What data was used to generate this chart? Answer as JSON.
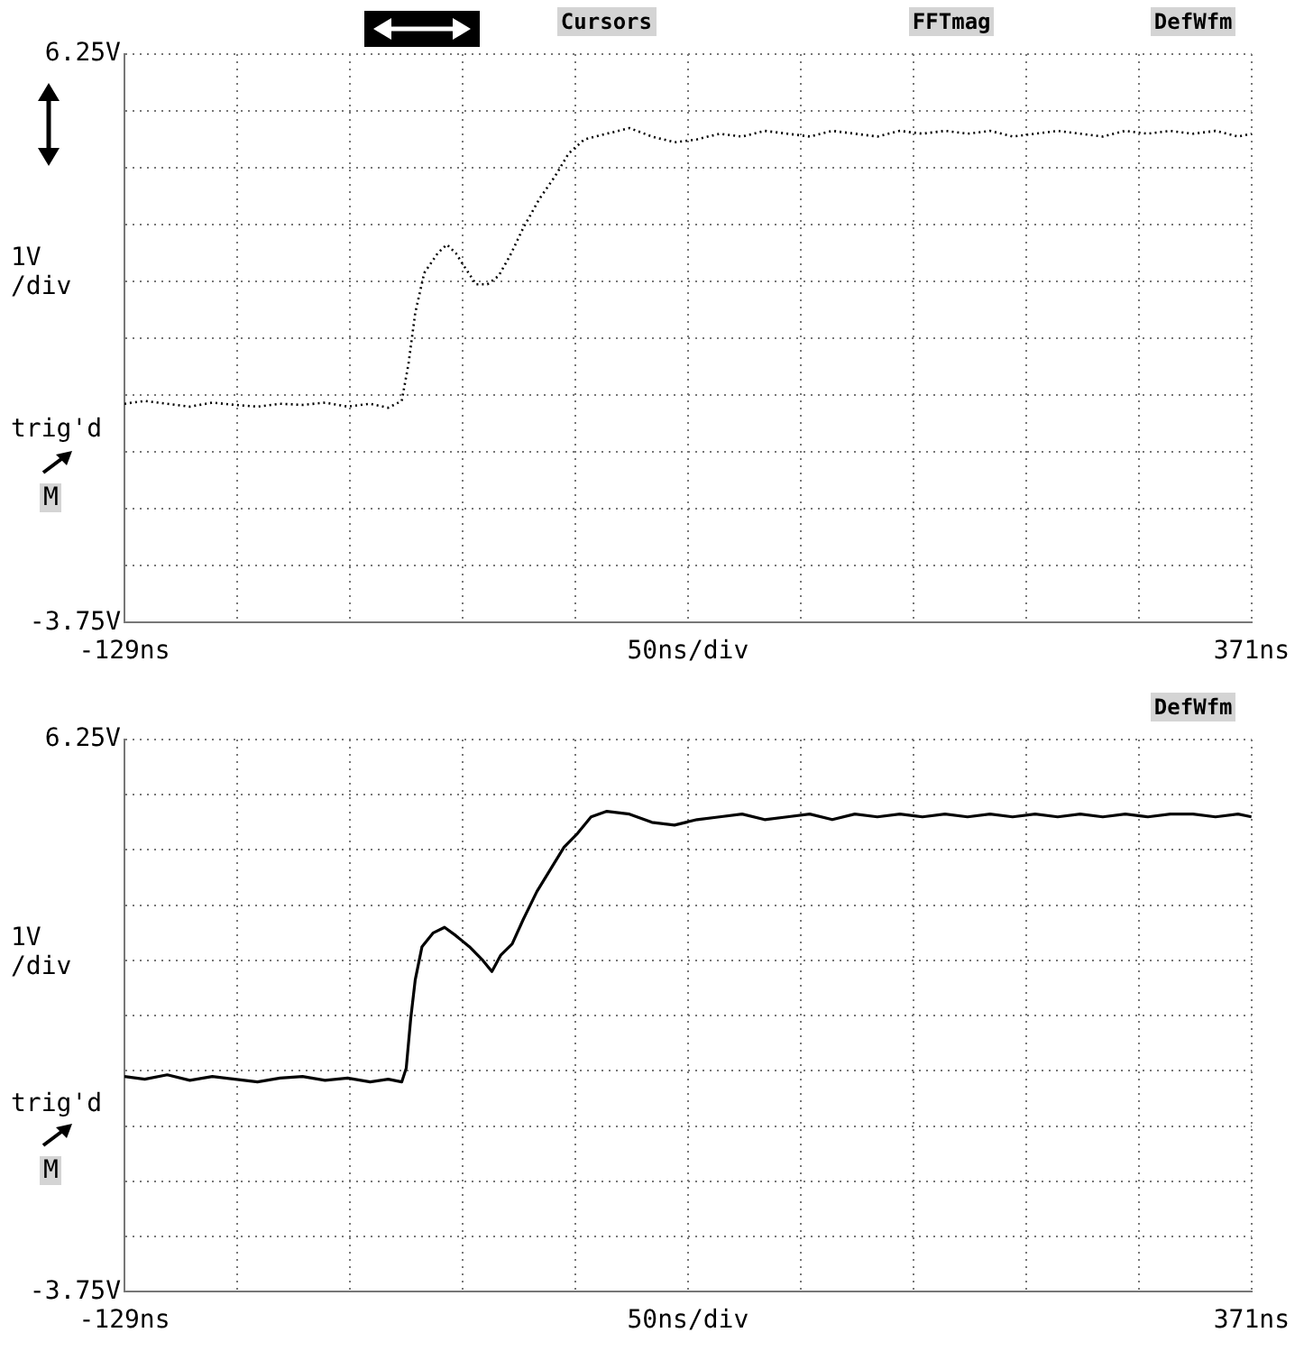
{
  "chart_data": [
    {
      "type": "line",
      "xlabel": "50ns/div",
      "ylabel": "1V /div",
      "x": [
        -129,
        -120,
        -110,
        -100,
        -90,
        -80,
        -70,
        -60,
        -50,
        -40,
        -30,
        -20,
        -12,
        -6,
        -3,
        0,
        4,
        10,
        14,
        18,
        22,
        27,
        32,
        37,
        42,
        48,
        55,
        62,
        68,
        75,
        85,
        95,
        105,
        115,
        125,
        135,
        145,
        155,
        165,
        175,
        185,
        195,
        205,
        215,
        225,
        235,
        245,
        255,
        265,
        275,
        285,
        295,
        305,
        315,
        325,
        335,
        345,
        355,
        365,
        371
      ],
      "series": [
        {
          "color": "#000000",
          "values": [
            0.1,
            0.15,
            0.1,
            0.05,
            0.12,
            0.08,
            0.05,
            0.1,
            0.08,
            0.12,
            0.05,
            0.1,
            0.03,
            0.15,
            0.8,
            1.7,
            2.4,
            2.75,
            2.9,
            2.75,
            2.5,
            2.2,
            2.2,
            2.35,
            2.7,
            3.2,
            3.7,
            4.1,
            4.5,
            4.75,
            4.85,
            4.95,
            4.8,
            4.7,
            4.75,
            4.85,
            4.8,
            4.9,
            4.85,
            4.8,
            4.9,
            4.85,
            4.8,
            4.9,
            4.85,
            4.9,
            4.85,
            4.9,
            4.8,
            4.85,
            4.9,
            4.85,
            4.8,
            4.9,
            4.85,
            4.9,
            4.85,
            4.9,
            4.8,
            4.85
          ]
        }
      ],
      "xlim": [
        -129,
        371
      ],
      "ylim": [
        -3.75,
        6.25
      ],
      "xticks": [
        {
          "value": -129,
          "label": "-129ns"
        },
        {
          "value": -79,
          "label": null
        },
        {
          "value": -29,
          "label": null
        },
        {
          "value": 21,
          "label": null
        },
        {
          "value": 71,
          "label": null
        },
        {
          "value": 121,
          "label": null
        },
        {
          "value": 171,
          "label": null
        },
        {
          "value": 221,
          "label": null
        },
        {
          "value": 271,
          "label": null
        },
        {
          "value": 321,
          "label": null
        },
        {
          "value": 371,
          "label": "371ns"
        }
      ],
      "yticks": [
        {
          "value": -3.75,
          "label": "-3.75V"
        },
        {
          "value": -2.75,
          "label": null
        },
        {
          "value": -1.75,
          "label": null
        },
        {
          "value": -0.75,
          "label": null
        },
        {
          "value": 0.25,
          "label": null
        },
        {
          "value": 1.25,
          "label": null
        },
        {
          "value": 2.25,
          "label": null
        },
        {
          "value": 3.25,
          "label": null
        },
        {
          "value": 4.25,
          "label": null
        },
        {
          "value": 5.25,
          "label": null
        },
        {
          "value": 6.25,
          "label": "6.25V"
        }
      ],
      "annotations": [
        "trig'd",
        "M",
        "Cursors",
        "FFTmag",
        "DefWfm"
      ],
      "grid": true,
      "legend": false,
      "marker": "none",
      "line_style": "dotted"
    },
    {
      "type": "line",
      "xlabel": "50ns/div",
      "ylabel": "1V /div",
      "x": [
        -129,
        -120,
        -110,
        -100,
        -90,
        -80,
        -70,
        -60,
        -50,
        -40,
        -30,
        -20,
        -12,
        -6,
        -4,
        -2,
        0,
        3,
        8,
        13,
        18,
        24,
        30,
        34,
        38,
        43,
        48,
        54,
        60,
        66,
        72,
        78,
        85,
        95,
        105,
        115,
        125,
        135,
        145,
        155,
        165,
        175,
        185,
        195,
        205,
        215,
        225,
        235,
        245,
        255,
        265,
        275,
        285,
        295,
        305,
        315,
        325,
        335,
        345,
        355,
        365,
        371
      ],
      "series": [
        {
          "color": "#000000",
          "values": [
            0.15,
            0.1,
            0.18,
            0.08,
            0.15,
            0.1,
            0.05,
            0.12,
            0.15,
            0.08,
            0.12,
            0.05,
            0.1,
            0.05,
            0.3,
            1.2,
            1.9,
            2.5,
            2.75,
            2.85,
            2.7,
            2.5,
            2.25,
            2.05,
            2.35,
            2.55,
            3.0,
            3.5,
            3.9,
            4.3,
            4.55,
            4.85,
            4.95,
            4.9,
            4.75,
            4.7,
            4.8,
            4.85,
            4.9,
            4.8,
            4.85,
            4.9,
            4.8,
            4.9,
            4.85,
            4.9,
            4.85,
            4.9,
            4.85,
            4.9,
            4.85,
            4.9,
            4.85,
            4.9,
            4.85,
            4.9,
            4.85,
            4.9,
            4.9,
            4.85,
            4.9,
            4.85
          ]
        }
      ],
      "xlim": [
        -129,
        371
      ],
      "ylim": [
        -3.75,
        6.25
      ],
      "xticks": [
        {
          "value": -129,
          "label": "-129ns"
        },
        {
          "value": -79,
          "label": null
        },
        {
          "value": -29,
          "label": null
        },
        {
          "value": 21,
          "label": null
        },
        {
          "value": 71,
          "label": null
        },
        {
          "value": 121,
          "label": null
        },
        {
          "value": 171,
          "label": null
        },
        {
          "value": 221,
          "label": null
        },
        {
          "value": 271,
          "label": null
        },
        {
          "value": 321,
          "label": null
        },
        {
          "value": 371,
          "label": "371ns"
        }
      ],
      "yticks": [
        {
          "value": -3.75,
          "label": "-3.75V"
        },
        {
          "value": -2.75,
          "label": null
        },
        {
          "value": -1.75,
          "label": null
        },
        {
          "value": -0.75,
          "label": null
        },
        {
          "value": 0.25,
          "label": null
        },
        {
          "value": 1.25,
          "label": null
        },
        {
          "value": 2.25,
          "label": null
        },
        {
          "value": 3.25,
          "label": null
        },
        {
          "value": 4.25,
          "label": null
        },
        {
          "value": 5.25,
          "label": null
        },
        {
          "value": 6.25,
          "label": "6.25V"
        }
      ],
      "annotations": [
        "trig'd",
        "M",
        "DefWfm"
      ],
      "grid": true,
      "legend": false,
      "marker": "none",
      "line_style": "solid"
    }
  ]
}
